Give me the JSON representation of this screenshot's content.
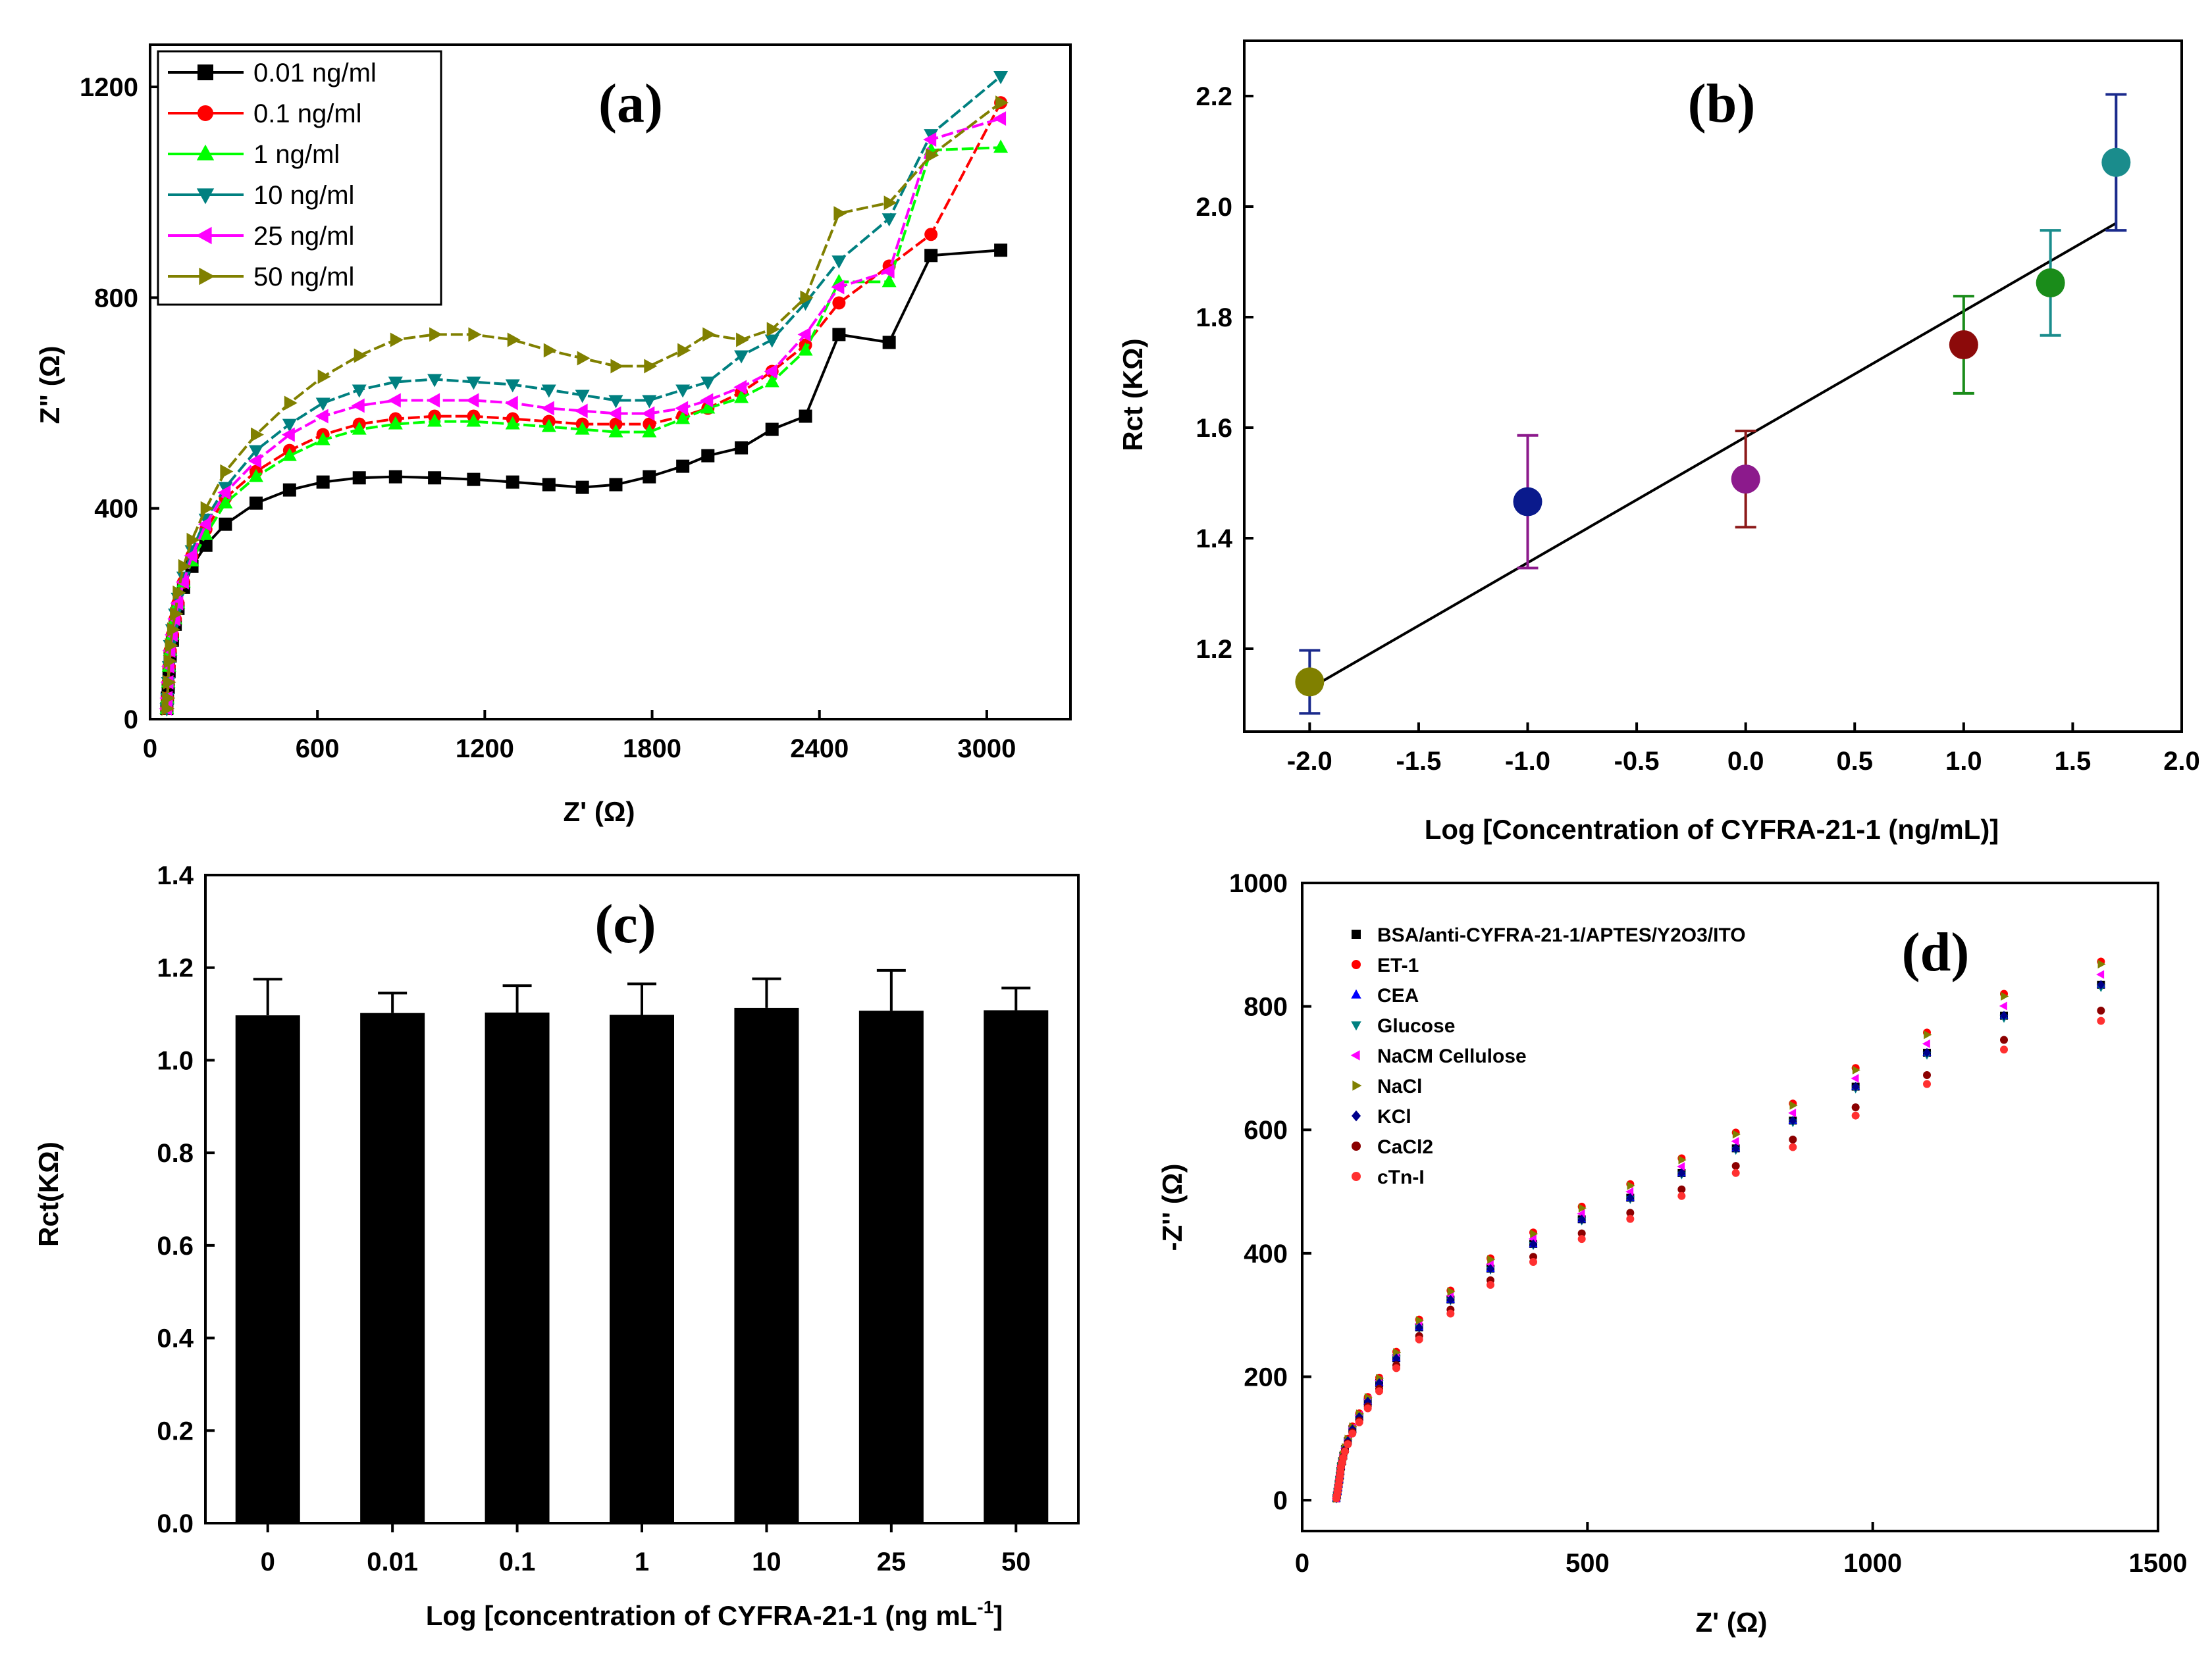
{
  "figure": {
    "panel_a": {
      "label": "(a)",
      "xlabel": "Z' (Ω)",
      "ylabel": "Z\" (Ω)"
    },
    "panel_b": {
      "label": "(b)",
      "xlabel": "Log [Concentration of CYFRA-21-1 (ng/mL)]",
      "ylabel": "Rct (KΩ)"
    },
    "panel_c": {
      "label": "(c)",
      "xlabel": "Log [concentration of CYFRA-21-1 (ng mL",
      "xlabel_sup": "-1",
      "xlabel_end": "]",
      "ylabel": "Rct(KΩ)"
    },
    "panel_d": {
      "label": "(d)",
      "xlabel": "Z' (Ω)",
      "ylabel": "-Z'' (Ω)"
    }
  },
  "chart_data": [
    {
      "panel": "a",
      "type": "line",
      "title": "(a)",
      "xlabel": "Z' (Ω)",
      "ylabel": "Z\" (Ω)",
      "xlim": [
        0,
        3300
      ],
      "ylim": [
        0,
        1280
      ],
      "xticks": [
        0,
        600,
        1200,
        1800,
        2400,
        3000
      ],
      "yticks": [
        0,
        400,
        800,
        1200
      ],
      "legend_position": "top-left",
      "series": [
        {
          "name": "0.01 ng/ml",
          "color": "#000000",
          "marker": "square",
          "x": [
            60,
            62,
            65,
            68,
            72,
            80,
            90,
            100,
            120,
            150,
            200,
            270,
            380,
            500,
            620,
            750,
            880,
            1020,
            1160,
            1300,
            1430,
            1550,
            1670,
            1790,
            1910,
            2000,
            2120,
            2230,
            2350,
            2470,
            2650,
            2800,
            3050
          ],
          "y": [
            20,
            40,
            60,
            90,
            120,
            150,
            180,
            210,
            250,
            290,
            330,
            370,
            410,
            435,
            450,
            458,
            460,
            458,
            455,
            450,
            445,
            440,
            445,
            460,
            480,
            500,
            515,
            550,
            575,
            730,
            715,
            880,
            890
          ]
        },
        {
          "name": "0.1 ng/ml",
          "color": "#ff0000",
          "marker": "circle",
          "x": [
            60,
            62,
            65,
            68,
            72,
            80,
            90,
            100,
            120,
            150,
            200,
            270,
            380,
            500,
            620,
            750,
            880,
            1020,
            1160,
            1300,
            1430,
            1550,
            1670,
            1790,
            1910,
            2000,
            2120,
            2230,
            2350,
            2470,
            2650,
            2800,
            3050
          ],
          "y": [
            20,
            40,
            70,
            100,
            130,
            160,
            190,
            220,
            260,
            310,
            360,
            420,
            470,
            510,
            540,
            560,
            570,
            575,
            575,
            570,
            565,
            560,
            560,
            560,
            575,
            590,
            620,
            660,
            710,
            790,
            860,
            920,
            1170
          ]
        },
        {
          "name": "1 ng/ml",
          "color": "#00ff00",
          "marker": "triangle-up",
          "x": [
            60,
            62,
            65,
            68,
            72,
            80,
            90,
            100,
            120,
            150,
            200,
            270,
            380,
            500,
            620,
            750,
            880,
            1020,
            1160,
            1300,
            1430,
            1550,
            1670,
            1790,
            1910,
            2000,
            2120,
            2230,
            2350,
            2470,
            2650,
            2800,
            3050
          ],
          "y": [
            20,
            40,
            70,
            100,
            130,
            160,
            190,
            220,
            260,
            300,
            350,
            410,
            460,
            500,
            530,
            550,
            560,
            565,
            565,
            560,
            555,
            550,
            545,
            545,
            570,
            590,
            610,
            640,
            700,
            830,
            830,
            1080,
            1085
          ]
        },
        {
          "name": "10 ng/ml",
          "color": "#008080",
          "marker": "triangle-down",
          "x": [
            60,
            62,
            65,
            68,
            72,
            80,
            90,
            100,
            120,
            150,
            200,
            270,
            380,
            500,
            620,
            750,
            880,
            1020,
            1160,
            1300,
            1430,
            1550,
            1670,
            1790,
            1910,
            2000,
            2120,
            2230,
            2350,
            2470,
            2650,
            2800,
            3050
          ],
          "y": [
            20,
            40,
            70,
            100,
            140,
            170,
            200,
            230,
            270,
            320,
            380,
            440,
            510,
            560,
            600,
            625,
            640,
            645,
            640,
            635,
            625,
            615,
            605,
            605,
            625,
            640,
            690,
            720,
            790,
            870,
            950,
            1110,
            1220
          ]
        },
        {
          "name": "25 ng/ml",
          "color": "#ff00ff",
          "marker": "triangle-left",
          "x": [
            60,
            62,
            65,
            68,
            72,
            80,
            90,
            100,
            120,
            150,
            200,
            270,
            380,
            500,
            620,
            750,
            880,
            1020,
            1160,
            1300,
            1430,
            1550,
            1670,
            1790,
            1910,
            2000,
            2120,
            2230,
            2350,
            2470,
            2650,
            2800,
            3050
          ],
          "y": [
            20,
            40,
            70,
            100,
            130,
            160,
            190,
            220,
            260,
            310,
            370,
            430,
            490,
            540,
            575,
            595,
            605,
            605,
            605,
            600,
            590,
            585,
            580,
            580,
            590,
            605,
            630,
            660,
            730,
            820,
            850,
            1100,
            1140
          ]
        },
        {
          "name": "50 ng/ml",
          "color": "#808000",
          "marker": "triangle-right",
          "x": [
            60,
            62,
            65,
            68,
            72,
            80,
            90,
            100,
            120,
            150,
            200,
            270,
            380,
            500,
            620,
            750,
            880,
            1020,
            1160,
            1300,
            1430,
            1550,
            1670,
            1790,
            1910,
            2000,
            2120,
            2230,
            2350,
            2470,
            2650,
            2800,
            3050
          ],
          "y": [
            20,
            40,
            70,
            110,
            140,
            170,
            200,
            240,
            290,
            340,
            400,
            470,
            540,
            600,
            650,
            690,
            720,
            730,
            730,
            720,
            700,
            685,
            670,
            670,
            700,
            730,
            720,
            740,
            800,
            960,
            980,
            1070,
            1170
          ]
        }
      ]
    },
    {
      "panel": "b",
      "type": "scatter",
      "title": "(b)",
      "xlabel": "Log [Concentration of CYFRA-21-1 (ng/mL)]",
      "ylabel": "Rct (KΩ)",
      "xlim": [
        -2.3,
        2.0
      ],
      "ylim": [
        1.05,
        2.3
      ],
      "xticks": [
        -2.0,
        -1.5,
        -1.0,
        -0.5,
        0.0,
        0.5,
        1.0,
        1.5,
        2.0
      ],
      "xtick_labels": [
        "-2.0",
        "-1.5",
        "-1.0",
        "-0.5",
        "0.0",
        "0.5",
        "1.0",
        "1.5",
        "2.0"
      ],
      "yticks": [
        1.2,
        1.4,
        1.6,
        1.8,
        2.0,
        2.2
      ],
      "ytick_labels": [
        "1.2",
        "1.4",
        "1.6",
        "1.8",
        "2.0",
        "2.2"
      ],
      "points": [
        {
          "x": -2.0,
          "y": 1.14,
          "err": 0.057,
          "color": "#808000",
          "errcolor": "#1a2a8c"
        },
        {
          "x": -1.0,
          "y": 1.466,
          "err": 0.12,
          "color": "#0a1a8c",
          "errcolor": "#8c1a8c"
        },
        {
          "x": 0.0,
          "y": 1.507,
          "err": 0.087,
          "color": "#8c1a8c",
          "errcolor": "#8c1a1a"
        },
        {
          "x": 1.0,
          "y": 1.75,
          "err": 0.088,
          "color": "#8c0a0a",
          "errcolor": "#1a8c1a"
        },
        {
          "x": 1.398,
          "y": 1.862,
          "err": 0.095,
          "color": "#1a8c1a",
          "errcolor": "#1a8c8c"
        },
        {
          "x": 1.699,
          "y": 2.08,
          "err": 0.123,
          "color": "#1a8c8c",
          "errcolor": "#1a2a8c"
        }
      ],
      "fit": {
        "x": [
          -2.0,
          1.699
        ],
        "y": [
          1.128,
          1.97
        ]
      }
    },
    {
      "panel": "c",
      "type": "bar",
      "title": "(c)",
      "xlabel": "Log [concentration of CYFRA-21-1 (ng mL-1]",
      "ylabel": "Rct(KΩ)",
      "ylim": [
        0.0,
        1.4
      ],
      "yticks": [
        0.0,
        0.2,
        0.4,
        0.6,
        0.8,
        1.0,
        1.2,
        1.4
      ],
      "ytick_labels": [
        "0.0",
        "0.2",
        "0.4",
        "0.6",
        "0.8",
        "1.0",
        "1.2",
        "1.4"
      ],
      "categories": [
        "0",
        "0.01",
        "0.1",
        "1",
        "10",
        "25",
        "50"
      ],
      "values": [
        1.097,
        1.102,
        1.103,
        1.098,
        1.113,
        1.107,
        1.108
      ],
      "errors": [
        0.078,
        0.043,
        0.058,
        0.067,
        0.063,
        0.087,
        0.048
      ]
    },
    {
      "panel": "d",
      "type": "scatter",
      "title": "(d)",
      "xlabel": "Z' (Ω)",
      "ylabel": "-Z'' (Ω)",
      "xlim": [
        0,
        1500
      ],
      "ylim": [
        -50,
        1000
      ],
      "xticks": [
        0,
        500,
        1000,
        1500
      ],
      "yticks": [
        0,
        200,
        400,
        600,
        800,
        1000
      ],
      "legend_position": "top-left",
      "series": [
        {
          "name": "BSA/anti-CYFRA-21-1/APTES/Y2O3/ITO",
          "color": "#000000",
          "marker": "square",
          "scale": 1.0
        },
        {
          "name": "ET-1",
          "color": "#ff0000",
          "marker": "circle",
          "scale": 1.045
        },
        {
          "name": "CEA",
          "color": "#0000ff",
          "marker": "triangle-up",
          "scale": 1.0
        },
        {
          "name": "Glucose",
          "color": "#008080",
          "marker": "triangle-down",
          "scale": 0.995
        },
        {
          "name": "NaCM Cellulose",
          "color": "#ff00ff",
          "marker": "triangle-left",
          "scale": 1.02
        },
        {
          "name": "NaCl",
          "color": "#808000",
          "marker": "triangle-right",
          "scale": 1.04
        },
        {
          "name": "KCl",
          "color": "#00008b",
          "marker": "diamond",
          "scale": 1.0
        },
        {
          "name": "CaCl2",
          "color": "#8b0000",
          "marker": "circle",
          "scale": 0.95
        },
        {
          "name": "cTn-I",
          "color": "#ff3030",
          "marker": "circle",
          "scale": 0.93
        }
      ],
      "base_x": [
        60,
        61,
        62,
        63,
        64,
        65,
        66,
        67,
        68,
        70,
        72,
        75,
        80,
        88,
        100,
        115,
        135,
        165,
        205,
        260,
        330,
        405,
        490,
        575,
        665,
        760,
        860,
        970,
        1095,
        1230,
        1400
      ],
      "base_y": [
        3,
        8,
        14,
        20,
        26,
        33,
        40,
        47,
        55,
        63,
        72,
        83,
        96,
        115,
        135,
        160,
        190,
        230,
        280,
        325,
        375,
        415,
        455,
        490,
        530,
        570,
        615,
        670,
        725,
        785,
        835
      ]
    }
  ]
}
